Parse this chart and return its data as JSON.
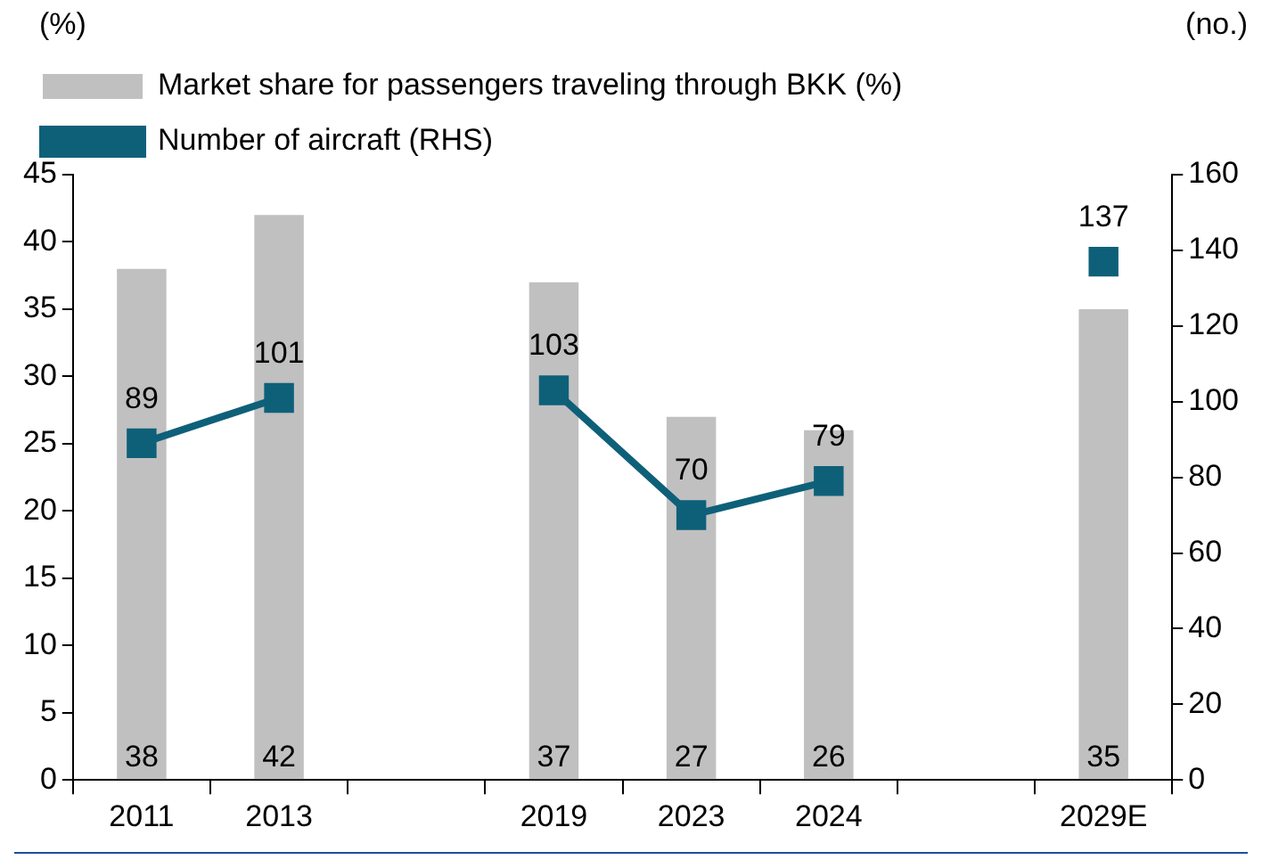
{
  "chart_data": {
    "type": "bar",
    "categories": [
      "2011",
      "2013",
      null,
      "2019",
      "2023",
      "2024",
      null,
      "2029E"
    ],
    "ylabel": "(%)",
    "y2label": "(no.)",
    "series": [
      {
        "name": "Market share for passengers traveling through BKK (%)",
        "color": "#c0c0c0",
        "values": [
          38,
          42,
          null,
          37,
          27,
          26,
          null,
          35
        ]
      },
      {
        "name": "Number of aircraft (RHS)",
        "type": "line",
        "axis": "y2",
        "color": "#0e6079",
        "values": [
          89,
          101,
          null,
          103,
          70,
          79,
          null,
          137
        ]
      }
    ],
    "ylim": [
      0,
      45
    ],
    "yticks": [
      0,
      5,
      10,
      15,
      20,
      25,
      30,
      35,
      40,
      45
    ],
    "y2lim": [
      0,
      160
    ],
    "y2ticks": [
      0,
      20,
      40,
      60,
      80,
      100,
      120,
      140,
      160
    ],
    "data_labels": true,
    "legend": "top",
    "marker": "square"
  }
}
